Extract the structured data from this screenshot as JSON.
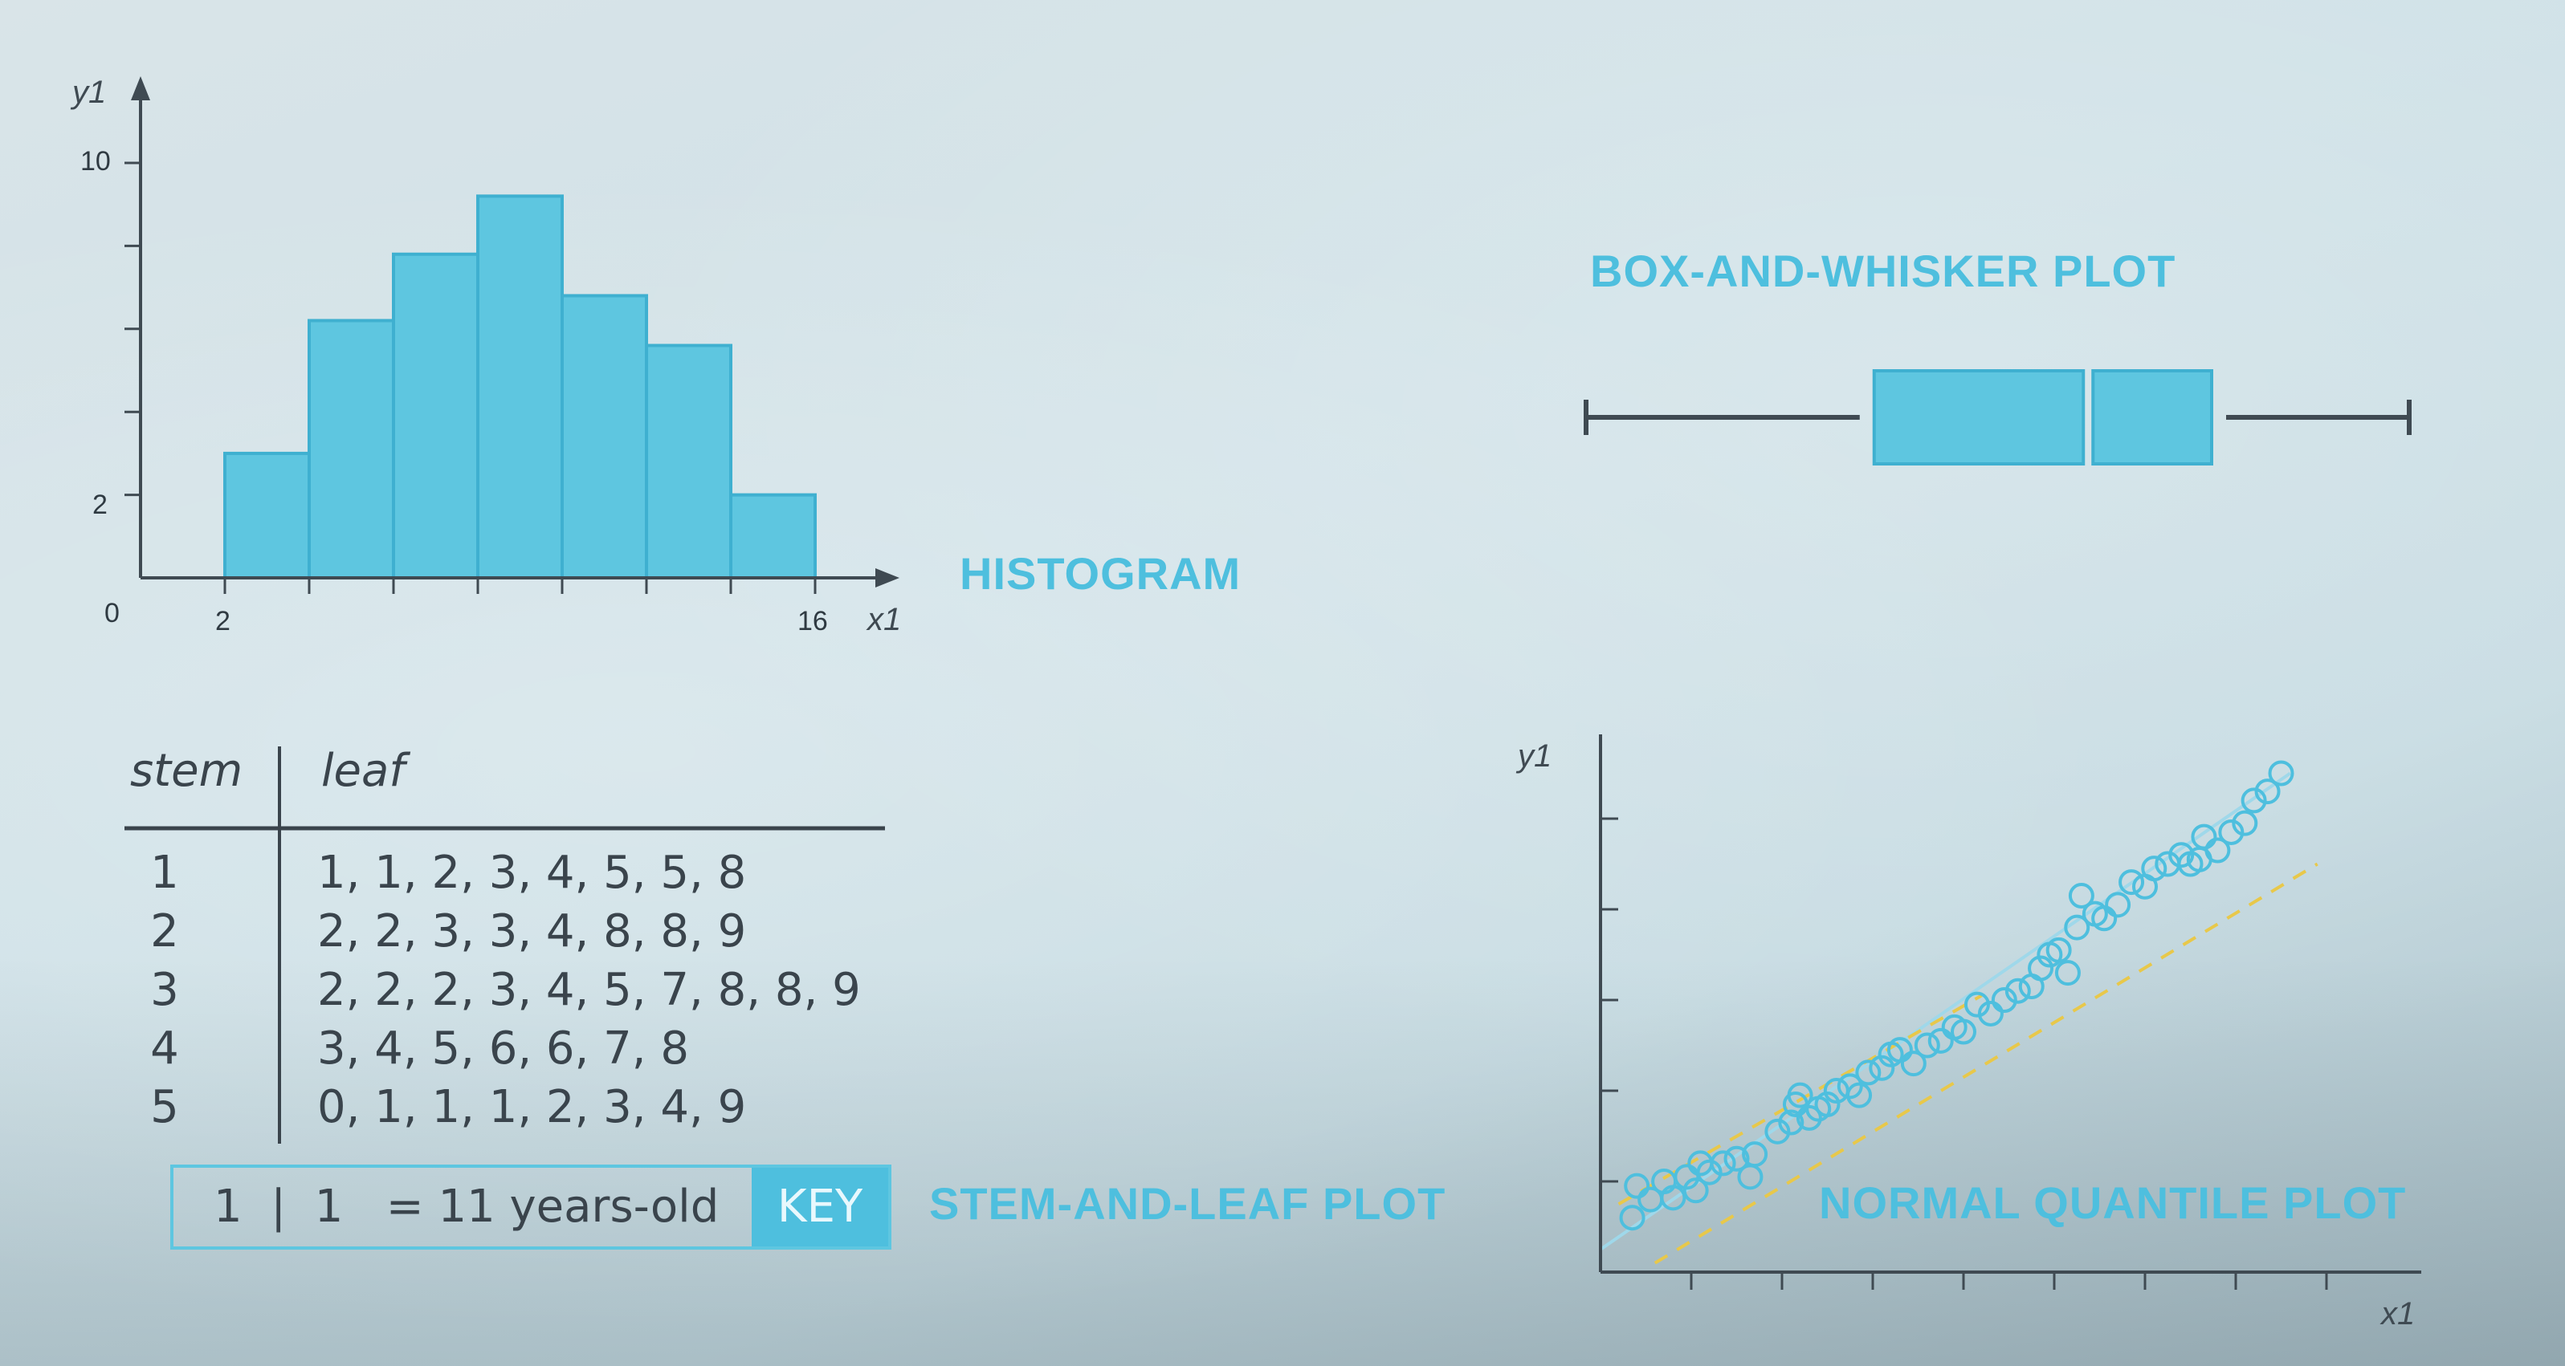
{
  "chart_data": [
    {
      "type": "bar",
      "title": "HISTOGRAM",
      "xlabel": "x1",
      "ylabel": "y1",
      "bin_edges": [
        2,
        4,
        6,
        8,
        10,
        12,
        14,
        16
      ],
      "values": [
        3,
        6.2,
        7.8,
        9.2,
        6.8,
        5.6,
        2
      ],
      "xlim": [
        0,
        16
      ],
      "ylim": [
        0,
        10
      ],
      "x_tick_labels": [
        "0",
        "2",
        "16"
      ],
      "y_tick_labels": [
        "2",
        "10"
      ]
    },
    {
      "type": "box",
      "title": "BOX-AND-WHISKER PLOT",
      "min": 0,
      "q1": 0.35,
      "median": 0.61,
      "q3": 0.76,
      "max": 1
    },
    {
      "type": "table",
      "title": "STEM-AND-LEAF PLOT",
      "columns": [
        "stem",
        "leaf"
      ],
      "rows": [
        {
          "stem": "1",
          "leaf": "1, 1, 2, 3, 4, 5, 5, 8"
        },
        {
          "stem": "2",
          "leaf": "2, 2, 3, 3, 4, 8, 8, 9"
        },
        {
          "stem": "3",
          "leaf": "2, 2, 2, 3, 4, 5, 7, 8, 8, 9"
        },
        {
          "stem": "4",
          "leaf": "3, 4, 5, 6, 6, 7, 8"
        },
        {
          "stem": "5",
          "leaf": "0, 1, 1, 1, 2, 3, 4, 9"
        }
      ],
      "key": {
        "text": "1  |  1   = 11 years-old",
        "badge": "KEY"
      }
    },
    {
      "type": "scatter",
      "title": "NORMAL QUANTILE PLOT",
      "xlabel": "x1",
      "ylabel": "y1",
      "xlim": [
        0,
        9
      ],
      "ylim": [
        0,
        6
      ],
      "points": [
        [
          0.35,
          0.6
        ],
        [
          0.4,
          0.95
        ],
        [
          0.55,
          0.8
        ],
        [
          0.7,
          1.0
        ],
        [
          0.8,
          0.82
        ],
        [
          0.95,
          1.05
        ],
        [
          1.05,
          0.9
        ],
        [
          1.1,
          1.2
        ],
        [
          1.2,
          1.1
        ],
        [
          1.35,
          1.2
        ],
        [
          1.5,
          1.25
        ],
        [
          1.65,
          1.05
        ],
        [
          1.7,
          1.3
        ],
        [
          1.95,
          1.55
        ],
        [
          2.1,
          1.65
        ],
        [
          2.15,
          1.85
        ],
        [
          2.2,
          1.95
        ],
        [
          2.3,
          1.7
        ],
        [
          2.4,
          1.8
        ],
        [
          2.5,
          1.85
        ],
        [
          2.6,
          2.0
        ],
        [
          2.75,
          2.05
        ],
        [
          2.85,
          1.95
        ],
        [
          2.95,
          2.2
        ],
        [
          3.1,
          2.25
        ],
        [
          3.2,
          2.4
        ],
        [
          3.3,
          2.45
        ],
        [
          3.45,
          2.3
        ],
        [
          3.6,
          2.5
        ],
        [
          3.75,
          2.55
        ],
        [
          3.9,
          2.7
        ],
        [
          4.0,
          2.65
        ],
        [
          4.15,
          2.95
        ],
        [
          4.3,
          2.85
        ],
        [
          4.45,
          3.0
        ],
        [
          4.6,
          3.1
        ],
        [
          4.75,
          3.15
        ],
        [
          4.85,
          3.35
        ],
        [
          4.95,
          3.5
        ],
        [
          5.05,
          3.55
        ],
        [
          5.15,
          3.3
        ],
        [
          5.25,
          3.8
        ],
        [
          5.3,
          4.15
        ],
        [
          5.45,
          3.95
        ],
        [
          5.55,
          3.9
        ],
        [
          5.7,
          4.05
        ],
        [
          5.85,
          4.3
        ],
        [
          6.0,
          4.25
        ],
        [
          6.1,
          4.45
        ],
        [
          6.25,
          4.5
        ],
        [
          6.4,
          4.6
        ],
        [
          6.5,
          4.5
        ],
        [
          6.65,
          4.8
        ],
        [
          6.8,
          4.65
        ],
        [
          6.95,
          4.85
        ],
        [
          7.1,
          4.95
        ],
        [
          7.35,
          5.3
        ],
        [
          7.5,
          5.5
        ],
        [
          6.6,
          4.55
        ],
        [
          7.2,
          5.2
        ]
      ],
      "reference_lines": [
        {
          "style": "solid",
          "color": "#9fd8ea",
          "from": [
            0,
            0.25
          ],
          "to": [
            7.6,
            5.5
          ]
        },
        {
          "style": "dashed",
          "color": "#e8c84a",
          "from": [
            0.6,
            0.1
          ],
          "to": [
            7.9,
            4.5
          ]
        },
        {
          "style": "dashed",
          "color": "#e8c84a",
          "from": [
            0.2,
            0.75
          ],
          "to": [
            4.2,
            3.05
          ]
        }
      ]
    }
  ],
  "colors": {
    "accent": "#4ebfde",
    "bar_fill": "#5ec6e0",
    "axis": "#3f4a52",
    "text": "#3a444c",
    "dashed": "#e8c84a"
  }
}
